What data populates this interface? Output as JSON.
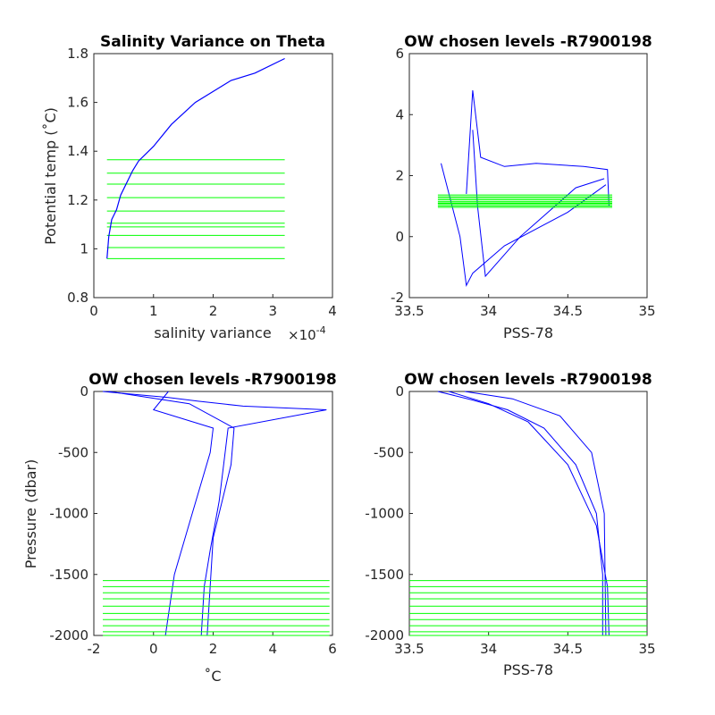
{
  "figure": {
    "background": "#ffffff",
    "line_color": "#0000ff",
    "level_color": "#00ff00"
  },
  "chart_data": [
    {
      "type": "line",
      "title": "Salinity Variance on Theta",
      "xlabel": "salinity variance",
      "x_exponent": "×10",
      "x_exponent_power": "-4",
      "ylabel": "Potential temp (˚C)",
      "xlim": [
        0,
        4
      ],
      "ylim": [
        0.8,
        1.8
      ],
      "xticks": [
        "0",
        "1",
        "2",
        "3",
        "4"
      ],
      "yticks": [
        "0.8",
        "1",
        "1.2",
        "1.4",
        "1.6",
        "1.8"
      ],
      "series": [
        {
          "x": [
            0.22,
            0.25,
            0.3,
            0.38,
            0.45,
            0.55,
            0.65,
            0.75,
            1.0,
            1.3,
            1.7,
            2.3,
            2.7,
            3.2
          ],
          "y": [
            0.96,
            1.05,
            1.12,
            1.16,
            1.22,
            1.27,
            1.32,
            1.36,
            1.42,
            1.51,
            1.6,
            1.69,
            1.72,
            1.78
          ]
        }
      ],
      "levels": {
        "x_range": [
          0.22,
          3.2
        ],
        "y": [
          0.96,
          1.005,
          1.055,
          1.09,
          1.105,
          1.155,
          1.21,
          1.265,
          1.31,
          1.365
        ]
      }
    },
    {
      "type": "line",
      "title": "OW chosen levels -R7900198",
      "xlabel": "PSS-78",
      "ylabel": "",
      "xlim": [
        33.5,
        35
      ],
      "ylim": [
        -2,
        6
      ],
      "xticks": [
        "33.5",
        "34",
        "34.5",
        "35"
      ],
      "yticks": [
        "-2",
        "0",
        "2",
        "4",
        "6"
      ],
      "series": [
        {
          "x": [
            33.86,
            33.9,
            33.95,
            34.1,
            34.3,
            34.6,
            34.75,
            34.76
          ],
          "y": [
            1.4,
            4.8,
            2.6,
            2.3,
            2.4,
            2.3,
            2.2,
            1.0
          ]
        },
        {
          "x": [
            33.7,
            33.82,
            33.86,
            33.9,
            34.1,
            34.5,
            34.74
          ],
          "y": [
            2.4,
            0.0,
            -1.6,
            -1.2,
            -0.3,
            0.8,
            1.7
          ]
        },
        {
          "x": [
            33.9,
            33.93,
            33.98,
            34.2,
            34.55,
            34.73
          ],
          "y": [
            3.5,
            1.0,
            -1.3,
            0.0,
            1.6,
            1.9
          ]
        }
      ],
      "levels": {
        "x_range": [
          33.68,
          34.78
        ],
        "y": [
          0.96,
          1.005,
          1.055,
          1.09,
          1.105,
          1.155,
          1.21,
          1.265,
          1.31,
          1.365
        ]
      }
    },
    {
      "type": "line",
      "title": "OW chosen levels -R7900198",
      "xlabel": "˚C",
      "ylabel": "Pressure (dbar)",
      "xlim": [
        -2,
        6
      ],
      "ylim": [
        -2000,
        0
      ],
      "xticks": [
        "-2",
        "0",
        "2",
        "4",
        "6"
      ],
      "yticks": [
        "-2000",
        "-1500",
        "-1000",
        "-500",
        "0"
      ],
      "series": [
        {
          "x": [
            -1.7,
            0.5,
            1.5,
            3.0,
            5.8,
            2.5,
            2.4,
            2.2,
            1.9,
            1.7,
            1.6
          ],
          "y": [
            0,
            -50,
            -80,
            -120,
            -150,
            -300,
            -500,
            -900,
            -1300,
            -1600,
            -2000
          ]
        },
        {
          "x": [
            0.5,
            0.0,
            2.0,
            1.9,
            1.3,
            0.7,
            0.4
          ],
          "y": [
            0,
            -150,
            -300,
            -500,
            -1000,
            -1500,
            -2000
          ]
        },
        {
          "x": [
            -1.5,
            1.2,
            2.7,
            2.6,
            2.0,
            1.8
          ],
          "y": [
            0,
            -100,
            -300,
            -600,
            -1200,
            -2000
          ]
        }
      ],
      "levels": {
        "x_range": [
          -1.7,
          5.9
        ],
        "y": [
          -1550,
          -1600,
          -1650,
          -1700,
          -1760,
          -1820,
          -1870,
          -1920,
          -1970,
          -2000
        ]
      }
    },
    {
      "type": "line",
      "title": "OW chosen levels -R7900198",
      "xlabel": "PSS-78",
      "ylabel": "",
      "xlim": [
        33.5,
        35
      ],
      "ylim": [
        -2000,
        0
      ],
      "xticks": [
        "33.5",
        "34",
        "34.5",
        "35"
      ],
      "yticks": [
        "-2000",
        "-1500",
        "-1000",
        "-500",
        "0"
      ],
      "series": [
        {
          "x": [
            33.68,
            33.9,
            34.12,
            34.35,
            34.55,
            34.68,
            34.72,
            34.72
          ],
          "y": [
            0,
            -70,
            -150,
            -300,
            -600,
            -1000,
            -1500,
            -2000
          ]
        },
        {
          "x": [
            33.75,
            34.0,
            34.25,
            34.5,
            34.68,
            34.75,
            34.76
          ],
          "y": [
            0,
            -100,
            -250,
            -600,
            -1100,
            -1600,
            -2000
          ]
        },
        {
          "x": [
            33.85,
            34.15,
            34.45,
            34.65,
            34.73,
            34.74
          ],
          "y": [
            0,
            -60,
            -200,
            -500,
            -1000,
            -2000
          ]
        }
      ],
      "levels": {
        "x_range": [
          33.5,
          35
        ],
        "y": [
          -1550,
          -1600,
          -1650,
          -1700,
          -1760,
          -1820,
          -1870,
          -1920,
          -1970,
          -2000
        ]
      }
    }
  ]
}
